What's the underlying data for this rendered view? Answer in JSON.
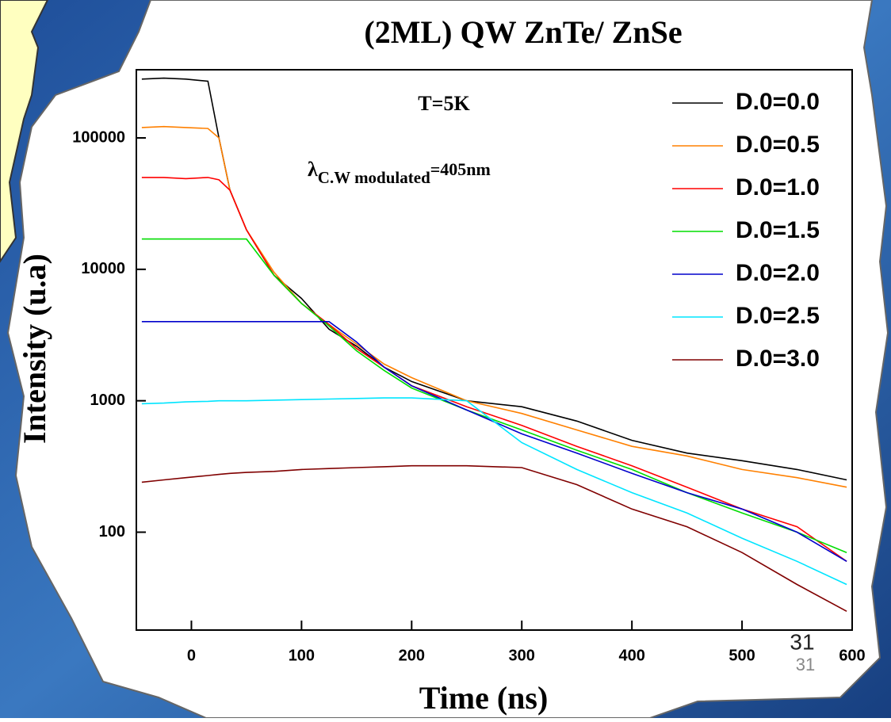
{
  "chart_data": {
    "type": "line",
    "title": "(2ML) QW ZnTe/ ZnSe",
    "x_label": "Time (ns)",
    "y_label": "Intensity (u.a)",
    "annotations": {
      "temperature": "T=5K",
      "lambda": "λ",
      "lambda_sub": "C.W modulated",
      "lambda_value": "=405nm"
    },
    "slide_number": "31",
    "log_y": true,
    "legend": "upper right",
    "xlim": [
      -50,
      600
    ],
    "ylim": [
      18,
      330000
    ],
    "xticks": [
      0,
      100,
      200,
      300,
      400,
      500,
      600
    ],
    "yticks": [
      100,
      1000,
      10000,
      100000
    ],
    "x": [
      -45,
      -25,
      -5,
      15,
      25,
      35,
      50,
      75,
      100,
      125,
      150,
      175,
      200,
      250,
      300,
      350,
      400,
      450,
      500,
      550,
      595
    ],
    "series": [
      {
        "name": "D.0=0.0",
        "color": "#000000",
        "values": [
          280000,
          285000,
          280000,
          270000,
          100000,
          40000,
          20000,
          9000,
          6000,
          3500,
          2600,
          1800,
          1400,
          1000,
          900,
          700,
          500,
          400,
          350,
          300,
          250
        ]
      },
      {
        "name": "D.0=0.5",
        "color": "#ff8000",
        "values": [
          120000,
          122000,
          120000,
          118000,
          100000,
          40000,
          20000,
          9500,
          5500,
          3800,
          2700,
          1900,
          1500,
          1000,
          800,
          600,
          450,
          380,
          300,
          260,
          220
        ]
      },
      {
        "name": "D.0=1.0",
        "color": "#ff0000",
        "values": [
          50000,
          50000,
          49000,
          50000,
          48000,
          40000,
          20000,
          9000,
          5500,
          3800,
          2500,
          1800,
          1300,
          900,
          650,
          450,
          320,
          220,
          150,
          110,
          60
        ]
      },
      {
        "name": "D.0=1.5",
        "color": "#00dd00",
        "values": [
          17000,
          17000,
          17000,
          17000,
          17000,
          17000,
          17000,
          9000,
          5500,
          3700,
          2400,
          1700,
          1250,
          850,
          600,
          420,
          300,
          200,
          140,
          100,
          70
        ]
      },
      {
        "name": "D.0=2.0",
        "color": "#0000cc",
        "values": [
          4000,
          4000,
          4000,
          4000,
          4000,
          4000,
          4000,
          4000,
          4000,
          4000,
          2800,
          1800,
          1300,
          850,
          560,
          400,
          280,
          200,
          150,
          100,
          60
        ]
      },
      {
        "name": "D.0=2.5",
        "color": "#00e5ff",
        "values": [
          950,
          960,
          980,
          990,
          1000,
          1000,
          1000,
          1010,
          1020,
          1030,
          1040,
          1050,
          1050,
          1000,
          480,
          300,
          200,
          140,
          90,
          60,
          40
        ]
      },
      {
        "name": "D.0=3.0",
        "color": "#800000",
        "values": [
          240,
          250,
          260,
          270,
          275,
          280,
          285,
          290,
          300,
          305,
          310,
          315,
          320,
          320,
          310,
          230,
          150,
          110,
          70,
          40,
          25
        ]
      }
    ]
  }
}
